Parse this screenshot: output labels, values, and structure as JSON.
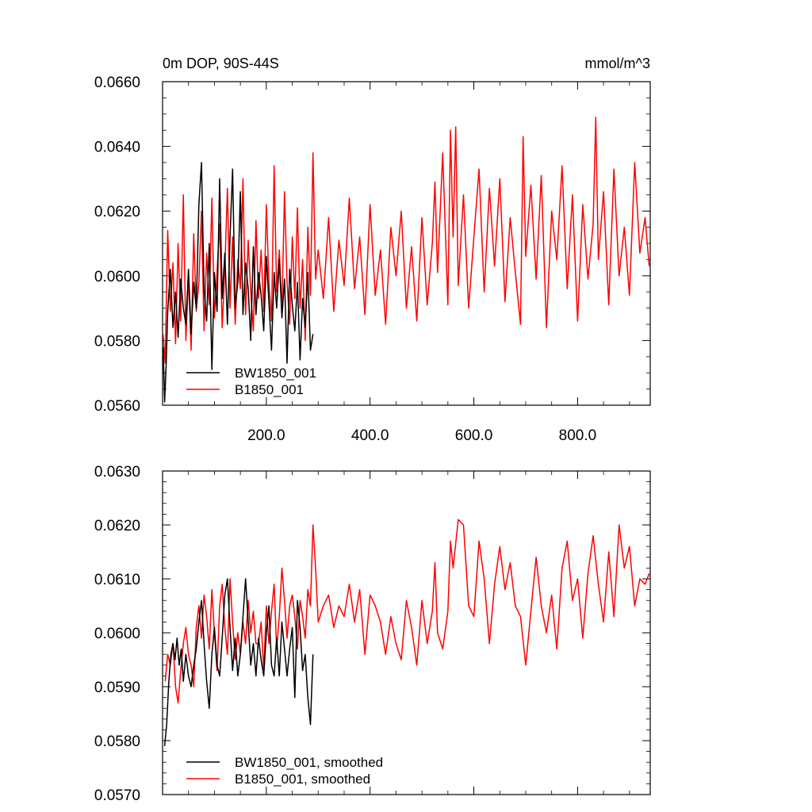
{
  "chart_data": [
    {
      "type": "line",
      "title_left": "0m DOP, 90S-44S",
      "title_right": "mmol/m^3",
      "xlabel": "",
      "ylabel": "",
      "xlim": [
        0,
        940
      ],
      "ylim": [
        0.056,
        0.066
      ],
      "x_ticks": [
        200,
        400,
        600,
        800
      ],
      "x_tick_labels": [
        "200.0",
        "400.0",
        "600.0",
        "800.0"
      ],
      "y_ticks": [
        0.056,
        0.058,
        0.06,
        0.062,
        0.064,
        0.066
      ],
      "y_tick_labels": [
        "0.0560",
        "0.0580",
        "0.0600",
        "0.0620",
        "0.0640",
        "0.0660"
      ],
      "grid": false,
      "legend_position": "bottom-left",
      "series": [
        {
          "name": "BW1850_001",
          "color": "#000000",
          "x": [
            1,
            4,
            7,
            10,
            15,
            20,
            25,
            30,
            35,
            40,
            45,
            50,
            55,
            60,
            65,
            70,
            75,
            80,
            85,
            90,
            95,
            100,
            105,
            110,
            115,
            120,
            125,
            130,
            135,
            140,
            145,
            150,
            155,
            160,
            165,
            170,
            175,
            180,
            185,
            190,
            195,
            200,
            205,
            210,
            215,
            220,
            225,
            230,
            235,
            240,
            245,
            250,
            255,
            260,
            265,
            270,
            275,
            280,
            285,
            290
          ],
          "values": [
            0.0578,
            0.0561,
            0.0573,
            0.0589,
            0.0602,
            0.0584,
            0.0595,
            0.0581,
            0.0599,
            0.059,
            0.0585,
            0.0602,
            0.0582,
            0.0598,
            0.059,
            0.0622,
            0.0635,
            0.0596,
            0.0586,
            0.061,
            0.0571,
            0.0601,
            0.0589,
            0.063,
            0.0593,
            0.0607,
            0.0585,
            0.0612,
            0.0633,
            0.059,
            0.0598,
            0.0626,
            0.0588,
            0.0604,
            0.0596,
            0.058,
            0.0609,
            0.0588,
            0.0601,
            0.0594,
            0.0583,
            0.0606,
            0.0592,
            0.0577,
            0.0601,
            0.059,
            0.0605,
            0.0587,
            0.0599,
            0.0573,
            0.0602,
            0.0591,
            0.0583,
            0.0598,
            0.0574,
            0.0593,
            0.0584,
            0.0601,
            0.0577,
            0.0582
          ]
        },
        {
          "name": "B1850_001",
          "color": "#ff0000",
          "x": [
            1,
            5,
            10,
            15,
            20,
            25,
            30,
            35,
            40,
            45,
            50,
            55,
            60,
            65,
            70,
            75,
            80,
            85,
            90,
            95,
            100,
            105,
            110,
            115,
            120,
            125,
            130,
            135,
            140,
            145,
            150,
            155,
            160,
            165,
            170,
            175,
            180,
            185,
            190,
            195,
            200,
            205,
            210,
            215,
            220,
            225,
            230,
            235,
            240,
            245,
            250,
            255,
            260,
            265,
            270,
            275,
            280,
            285,
            290,
            295,
            300,
            310,
            320,
            330,
            340,
            350,
            360,
            370,
            380,
            390,
            400,
            410,
            420,
            430,
            440,
            450,
            460,
            470,
            480,
            490,
            500,
            510,
            520,
            525,
            530,
            540,
            550,
            555,
            560,
            565,
            570,
            580,
            590,
            600,
            610,
            620,
            630,
            640,
            650,
            660,
            670,
            680,
            690,
            695,
            700,
            710,
            720,
            730,
            740,
            750,
            760,
            770,
            780,
            790,
            800,
            810,
            820,
            830,
            835,
            840,
            850,
            860,
            870,
            880,
            890,
            900,
            910,
            920,
            930,
            938
          ],
          "values": [
            0.0582,
            0.0573,
            0.0614,
            0.0589,
            0.0604,
            0.0579,
            0.061,
            0.0586,
            0.0625,
            0.058,
            0.06,
            0.0577,
            0.0613,
            0.0589,
            0.0598,
            0.062,
            0.0583,
            0.0607,
            0.0591,
            0.0624,
            0.0587,
            0.0601,
            0.0616,
            0.0584,
            0.0602,
            0.0627,
            0.059,
            0.0612,
            0.0585,
            0.0605,
            0.0596,
            0.063,
            0.0588,
            0.0611,
            0.0595,
            0.0583,
            0.0617,
            0.0593,
            0.0608,
            0.0589,
            0.0622,
            0.0598,
            0.0586,
            0.0634,
            0.0595,
            0.0608,
            0.0589,
            0.0626,
            0.0598,
            0.0585,
            0.0612,
            0.0593,
            0.0621,
            0.059,
            0.0605,
            0.058,
            0.0615,
            0.0594,
            0.0638,
            0.0599,
            0.0608,
            0.0593,
            0.0618,
            0.0589,
            0.0611,
            0.0597,
            0.0624,
            0.0596,
            0.0612,
            0.0588,
            0.0622,
            0.0594,
            0.0608,
            0.0585,
            0.0615,
            0.06,
            0.062,
            0.059,
            0.0609,
            0.0586,
            0.0618,
            0.0591,
            0.061,
            0.0629,
            0.0601,
            0.0638,
            0.0591,
            0.0645,
            0.0612,
            0.0646,
            0.0597,
            0.0625,
            0.059,
            0.0612,
            0.0633,
            0.0595,
            0.0627,
            0.0603,
            0.063,
            0.0592,
            0.0618,
            0.0601,
            0.0585,
            0.0643,
            0.0606,
            0.0628,
            0.0599,
            0.0631,
            0.0584,
            0.062,
            0.0605,
            0.0634,
            0.0596,
            0.0625,
            0.0586,
            0.0622,
            0.0599,
            0.0616,
            0.0649,
            0.0605,
            0.0626,
            0.0591,
            0.0633,
            0.06,
            0.0615,
            0.0594,
            0.0635,
            0.0607,
            0.0618,
            0.0603
          ]
        }
      ]
    },
    {
      "type": "line",
      "xlabel": "",
      "ylabel": "",
      "xlim": [
        0,
        940
      ],
      "ylim": [
        0.057,
        0.063
      ],
      "x_ticks": [
        200,
        400,
        600,
        800
      ],
      "y_ticks": [
        0.057,
        0.058,
        0.059,
        0.06,
        0.061,
        0.062,
        0.063
      ],
      "y_tick_labels": [
        "0.0570",
        "0.0580",
        "0.0590",
        "0.0600",
        "0.0610",
        "0.0620",
        "0.0630"
      ],
      "grid": false,
      "legend_position": "bottom-left",
      "series": [
        {
          "name": "BW1850_001, smoothed",
          "color": "#000000",
          "x": [
            4,
            8,
            12,
            16,
            20,
            24,
            28,
            32,
            36,
            40,
            45,
            50,
            55,
            60,
            65,
            70,
            75,
            80,
            85,
            90,
            95,
            100,
            105,
            110,
            115,
            120,
            125,
            130,
            135,
            140,
            145,
            150,
            155,
            160,
            165,
            170,
            175,
            180,
            185,
            190,
            195,
            200,
            205,
            210,
            215,
            220,
            225,
            230,
            235,
            240,
            245,
            250,
            255,
            260,
            265,
            270,
            275,
            280,
            285,
            290
          ],
          "values": [
            0.0579,
            0.0583,
            0.0591,
            0.0596,
            0.0598,
            0.0595,
            0.0599,
            0.0594,
            0.0597,
            0.0591,
            0.0596,
            0.0592,
            0.059,
            0.0594,
            0.0597,
            0.0602,
            0.0606,
            0.0598,
            0.0591,
            0.0586,
            0.0596,
            0.0601,
            0.0594,
            0.0592,
            0.0599,
            0.0607,
            0.061,
            0.0601,
            0.0593,
            0.0599,
            0.0592,
            0.0596,
            0.0603,
            0.061,
            0.0602,
            0.0594,
            0.0598,
            0.0592,
            0.0599,
            0.0595,
            0.0592,
            0.06,
            0.0605,
            0.0594,
            0.0592,
            0.0599,
            0.0592,
            0.0602,
            0.0597,
            0.0592,
            0.0597,
            0.0601,
            0.0588,
            0.0606,
            0.0601,
            0.0593,
            0.0596,
            0.0588,
            0.0583,
            0.0596
          ]
        },
        {
          "name": "B1850_001, smoothed",
          "color": "#ff0000",
          "x": [
            5,
            10,
            15,
            20,
            25,
            30,
            35,
            40,
            45,
            50,
            55,
            60,
            65,
            70,
            75,
            80,
            85,
            90,
            95,
            100,
            105,
            110,
            115,
            120,
            125,
            130,
            135,
            140,
            145,
            150,
            155,
            160,
            165,
            170,
            175,
            180,
            185,
            190,
            195,
            200,
            205,
            210,
            215,
            220,
            225,
            230,
            235,
            240,
            245,
            250,
            255,
            260,
            265,
            270,
            275,
            280,
            285,
            290,
            295,
            300,
            310,
            320,
            330,
            340,
            350,
            360,
            370,
            380,
            390,
            400,
            410,
            420,
            430,
            440,
            450,
            460,
            470,
            480,
            490,
            500,
            510,
            520,
            525,
            530,
            540,
            550,
            555,
            560,
            570,
            580,
            590,
            600,
            610,
            620,
            630,
            640,
            650,
            660,
            670,
            680,
            690,
            700,
            710,
            720,
            730,
            740,
            750,
            760,
            770,
            780,
            790,
            800,
            810,
            820,
            830,
            840,
            850,
            860,
            870,
            880,
            890,
            900,
            910,
            920,
            930,
            938
          ],
          "values": [
            0.0591,
            0.0596,
            0.0594,
            0.0598,
            0.059,
            0.0587,
            0.0593,
            0.0598,
            0.0601,
            0.0596,
            0.0594,
            0.059,
            0.0601,
            0.0605,
            0.0599,
            0.0607,
            0.0603,
            0.0597,
            0.0608,
            0.06,
            0.0593,
            0.0605,
            0.0609,
            0.0601,
            0.0596,
            0.061,
            0.0602,
            0.0595,
            0.06,
            0.0596,
            0.0602,
            0.0598,
            0.0606,
            0.06,
            0.0604,
            0.0598,
            0.0598,
            0.0602,
            0.0593,
            0.0605,
            0.0598,
            0.0604,
            0.0609,
            0.0597,
            0.0603,
            0.0612,
            0.0606,
            0.0599,
            0.0605,
            0.0607,
            0.0603,
            0.0597,
            0.0606,
            0.0603,
            0.0599,
            0.0608,
            0.0605,
            0.062,
            0.0612,
            0.0602,
            0.0605,
            0.0607,
            0.0601,
            0.0605,
            0.0603,
            0.0609,
            0.0602,
            0.0608,
            0.0596,
            0.0607,
            0.0605,
            0.0602,
            0.0596,
            0.0603,
            0.0598,
            0.0595,
            0.0606,
            0.0601,
            0.0594,
            0.0606,
            0.0598,
            0.0604,
            0.0613,
            0.06,
            0.0597,
            0.0604,
            0.0617,
            0.0612,
            0.0621,
            0.062,
            0.0605,
            0.0603,
            0.0617,
            0.061,
            0.0598,
            0.0609,
            0.0616,
            0.0608,
            0.0613,
            0.0605,
            0.0603,
            0.0594,
            0.0604,
            0.0614,
            0.0605,
            0.06,
            0.0607,
            0.0597,
            0.0612,
            0.0617,
            0.0606,
            0.061,
            0.0599,
            0.0611,
            0.0618,
            0.0609,
            0.0602,
            0.0615,
            0.0603,
            0.062,
            0.0612,
            0.0616,
            0.0605,
            0.061,
            0.0609,
            0.0611
          ]
        }
      ]
    }
  ]
}
